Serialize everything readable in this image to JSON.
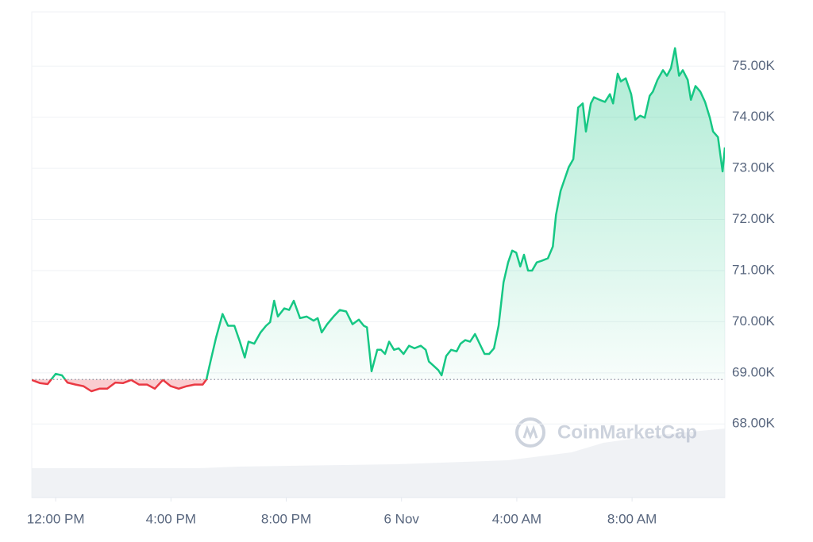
{
  "chart_data": {
    "type": "line",
    "watermark": "CoinMarketCap",
    "xlim": [
      -0.83,
      23.22
    ],
    "xticks": [
      {
        "value": 0,
        "label": "12:00 PM"
      },
      {
        "value": 4,
        "label": "4:00 PM"
      },
      {
        "value": 8,
        "label": "8:00 PM"
      },
      {
        "value": 12,
        "label": "6 Nov"
      },
      {
        "value": 16,
        "label": "4:00 AM"
      },
      {
        "value": 20,
        "label": "8:00 AM"
      }
    ],
    "ylim": [
      66560,
      76060
    ],
    "yticks": [
      {
        "value": 68000,
        "label": "68.00K"
      },
      {
        "value": 69000,
        "label": "69.00K"
      },
      {
        "value": 70000,
        "label": "70.00K"
      },
      {
        "value": 71000,
        "label": "71.00K"
      },
      {
        "value": 72000,
        "label": "72.00K"
      },
      {
        "value": 73000,
        "label": "73.00K"
      },
      {
        "value": 74000,
        "label": "74.00K"
      },
      {
        "value": 75000,
        "label": "75.00K"
      }
    ],
    "grid": true,
    "baseline": 68870,
    "up_color": "#16c784",
    "down_color": "#ea3943",
    "x": [
      -0.83,
      -0.55,
      -0.28,
      0,
      0.22,
      0.41,
      0.69,
      0.96,
      1.24,
      1.52,
      1.79,
      2.07,
      2.34,
      2.62,
      2.89,
      3.17,
      3.44,
      3.72,
      3.99,
      4.27,
      4.55,
      4.82,
      5.1,
      5.23,
      5.37,
      5.56,
      5.79,
      5.98,
      6.2,
      6.39,
      6.56,
      6.69,
      6.89,
      7.11,
      7.3,
      7.44,
      7.58,
      7.71,
      7.93,
      8.1,
      8.26,
      8.48,
      8.71,
      8.95,
      9.09,
      9.23,
      9.42,
      9.64,
      9.86,
      10.08,
      10.3,
      10.52,
      10.69,
      10.8,
      10.96,
      11.16,
      11.29,
      11.43,
      11.57,
      11.74,
      11.9,
      12.07,
      12.26,
      12.45,
      12.67,
      12.84,
      12.95,
      13.11,
      13.28,
      13.39,
      13.55,
      13.72,
      13.91,
      14.05,
      14.21,
      14.38,
      14.55,
      14.71,
      14.88,
      15.04,
      15.21,
      15.37,
      15.54,
      15.7,
      15.84,
      15.98,
      16.12,
      16.25,
      16.39,
      16.53,
      16.69,
      16.86,
      17.08,
      17.25,
      17.36,
      17.52,
      17.63,
      17.8,
      17.96,
      18.13,
      18.29,
      18.4,
      18.57,
      18.68,
      18.87,
      19.06,
      19.23,
      19.34,
      19.5,
      19.61,
      19.78,
      19.97,
      20.11,
      20.28,
      20.44,
      20.61,
      20.72,
      20.88,
      21.07,
      21.21,
      21.35,
      21.49,
      21.63,
      21.76,
      21.93,
      22.04,
      22.2,
      22.37,
      22.53,
      22.7,
      22.81,
      22.98,
      23.14,
      23.22
    ],
    "series": [
      {
        "values": [
          68860,
          68800,
          68780,
          68980,
          68950,
          68810,
          68770,
          68740,
          68640,
          68690,
          68690,
          68810,
          68800,
          68860,
          68770,
          68770,
          68690,
          68860,
          68740,
          68690,
          68740,
          68770,
          68770,
          68870,
          69220,
          69680,
          70150,
          69920,
          69920,
          69610,
          69300,
          69610,
          69570,
          69790,
          69920,
          69990,
          70410,
          70100,
          70260,
          70230,
          70410,
          70070,
          70100,
          70020,
          70070,
          69790,
          69950,
          70100,
          70230,
          70200,
          69950,
          70040,
          69920,
          69890,
          69030,
          69450,
          69450,
          69370,
          69610,
          69450,
          69480,
          69370,
          69530,
          69480,
          69530,
          69450,
          69220,
          69140,
          69050,
          68950,
          69330,
          69450,
          69420,
          69570,
          69640,
          69610,
          69760,
          69570,
          69370,
          69370,
          69480,
          69920,
          70770,
          71160,
          71390,
          71350,
          71080,
          71310,
          71000,
          71000,
          71160,
          71190,
          71240,
          71470,
          72090,
          72560,
          72740,
          73020,
          73180,
          74190,
          74270,
          73720,
          74270,
          74390,
          74340,
          74300,
          74450,
          74270,
          74850,
          74700,
          74760,
          74450,
          73950,
          74030,
          73990,
          74420,
          74500,
          74730,
          74920,
          74810,
          74960,
          75350,
          74810,
          74920,
          74730,
          74340,
          74610,
          74500,
          74300,
          73990,
          73720,
          73610,
          72940,
          73410
        ]
      }
    ]
  }
}
